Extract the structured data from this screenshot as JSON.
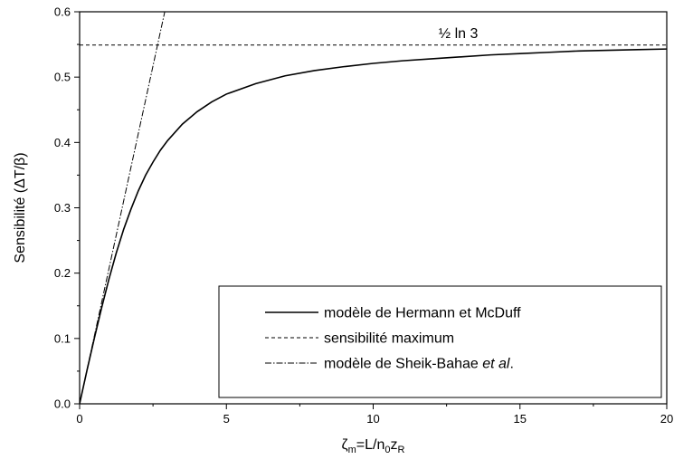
{
  "chart_data": {
    "type": "line",
    "xlim": [
      0,
      20
    ],
    "ylim": [
      0,
      0.6
    ],
    "xticks": [
      "0",
      "5",
      "10",
      "15",
      "20"
    ],
    "yticks": [
      "0.0",
      "0.1",
      "0.2",
      "0.3",
      "0.4",
      "0.5",
      "0.6"
    ],
    "xlabel": {
      "symbol": "ζ",
      "symbol_sub": "m",
      "mid": "=L/n",
      "mid_sub": "0",
      "tail": "z",
      "tail_sub": "R"
    },
    "ylabel": "Sensibilité (ΔT/β)",
    "annotation": "½ ln 3",
    "legend": {
      "placement": "bottom-right",
      "entries": [
        {
          "text": "modèle de Hermann et McDuff",
          "style": "solid"
        },
        {
          "text": "sensibilité maximum",
          "style": "dashed"
        },
        {
          "prefix": "modèle de Sheik-Bahae ",
          "italic": "et al",
          "suffix": ".",
          "style": "dashdot"
        }
      ]
    },
    "series": [
      {
        "style": "solid",
        "x": [
          0,
          0.25,
          0.5,
          0.75,
          1,
          1.25,
          1.5,
          1.75,
          2,
          2.25,
          2.5,
          2.75,
          3,
          3.5,
          4,
          4.5,
          5,
          6,
          7,
          8,
          9,
          10,
          11,
          12,
          13,
          14,
          15,
          16,
          17,
          18,
          19,
          20
        ],
        "y": [
          0,
          0.051,
          0.1,
          0.147,
          0.191,
          0.231,
          0.267,
          0.298,
          0.326,
          0.35,
          0.37,
          0.388,
          0.403,
          0.428,
          0.447,
          0.462,
          0.474,
          0.49,
          0.502,
          0.51,
          0.516,
          0.521,
          0.525,
          0.528,
          0.531,
          0.534,
          0.536,
          0.538,
          0.54,
          0.541,
          0.542,
          0.543
        ]
      },
      {
        "style": "dashed",
        "x": [
          0,
          20
        ],
        "y": [
          0.549,
          0.549
        ]
      },
      {
        "style": "dashdot",
        "x": [
          0,
          2.9
        ],
        "y": [
          0,
          0.6
        ]
      }
    ]
  }
}
